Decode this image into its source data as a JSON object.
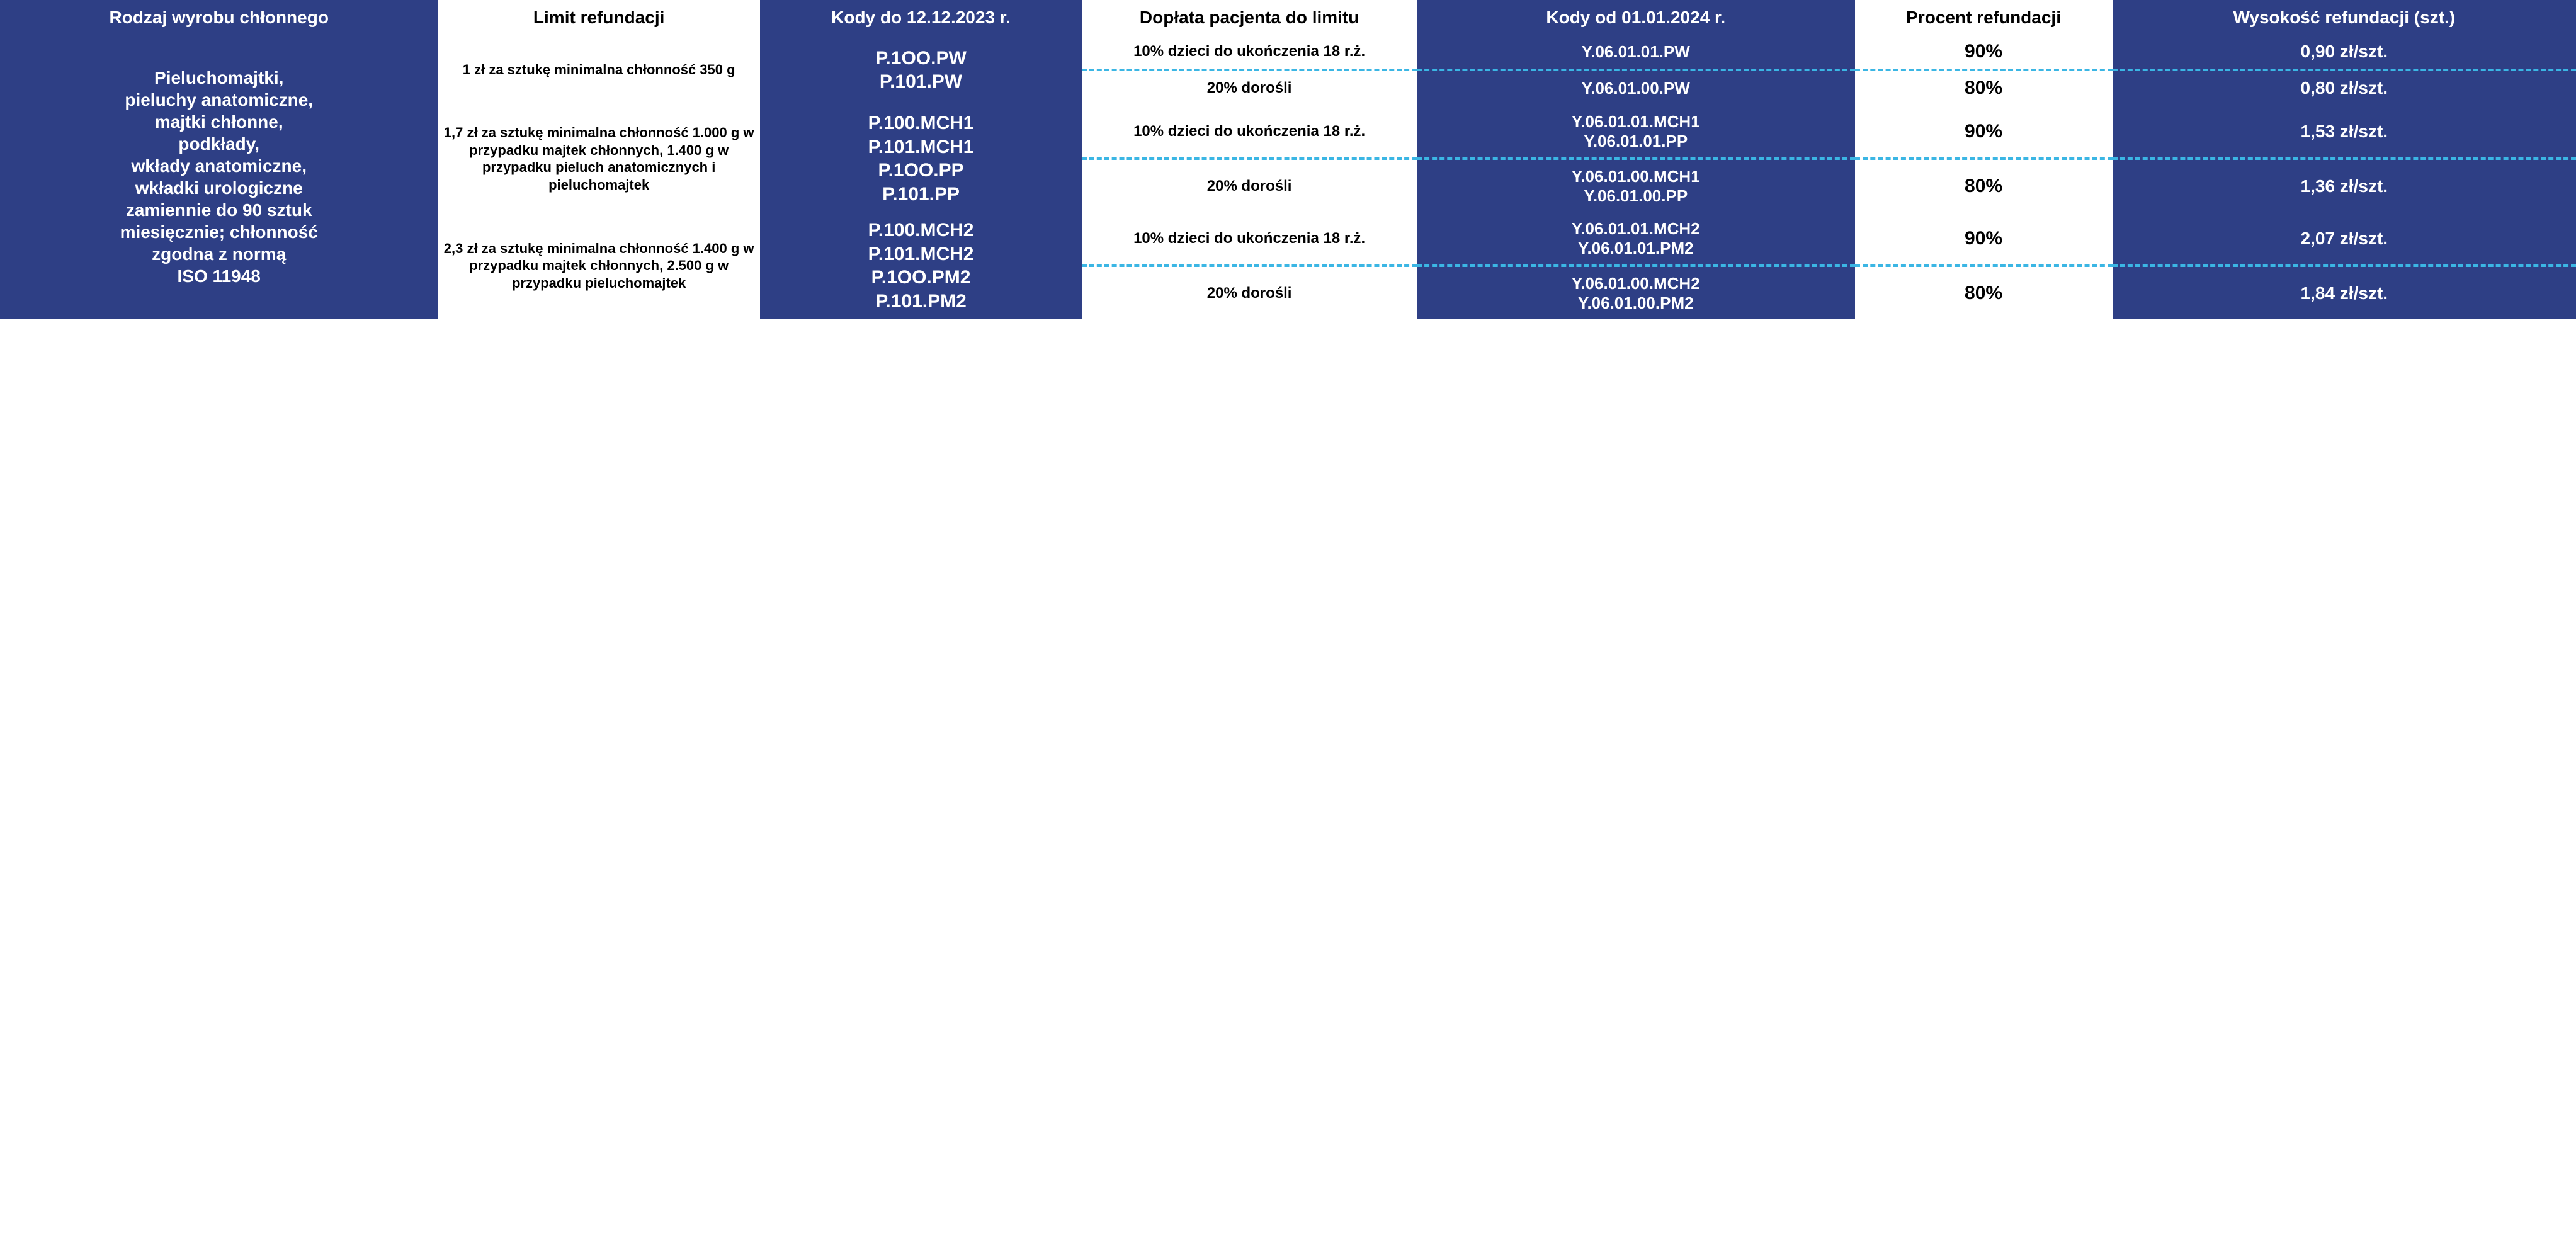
{
  "colors": {
    "blue": "#2e3f85",
    "white": "#ffffff",
    "black": "#000000",
    "dash": "#3bb6e4"
  },
  "headers": {
    "rodzaj": "Rodzaj wyrobu chłonnego",
    "limit": "Limit refundacji",
    "kody_old": "Kody do 12.12.2023 r.",
    "doplata": "Dopłata pacjenta do limitu",
    "kody_new": "Kody od 01.01.2024 r.",
    "procent": "Procent refundacji",
    "wysokosc": "Wysokość refundacji (szt.)"
  },
  "rodzaj_text": "Pieluchomajtki,\npieluchy anatomiczne,\nmajtki chłonne,\npodkłady,\nwkłady anatomiczne,\nwkładki urologiczne\nzamiennie do 90 sztuk\nmiesięcznie; chłonność\nzgodna z normą\nISO 11948",
  "groups": [
    {
      "limit": "1 zł za sztukę minimalna chłonność 350 g",
      "kody_old": "P.1OO.PW\nP.101.PW",
      "rows": [
        {
          "doplata": "10% dzieci do ukończenia 18 r.ż.",
          "kody_new": "Y.06.01.01.PW",
          "procent": "90%",
          "wysokosc": "0,90 zł/szt."
        },
        {
          "doplata": "20% dorośli",
          "kody_new": "Y.06.01.00.PW",
          "procent": "80%",
          "wysokosc": "0,80 zł/szt."
        }
      ]
    },
    {
      "limit": "1,7 zł za sztukę minimalna chłonność 1.000 g w przypadku majtek chłonnych, 1.400 g w przypadku pieluch anatomicznych i pieluchomajtek",
      "kody_old": "P.100.MCH1\nP.101.MCH1\nP.1OO.PP\nP.101.PP",
      "rows": [
        {
          "doplata": "10% dzieci do ukończenia 18 r.ż.",
          "kody_new": "Y.06.01.01.MCH1\nY.06.01.01.PP",
          "procent": "90%",
          "wysokosc": "1,53 zł/szt."
        },
        {
          "doplata": "20% dorośli",
          "kody_new": "Y.06.01.00.MCH1\nY.06.01.00.PP",
          "procent": "80%",
          "wysokosc": "1,36 zł/szt."
        }
      ]
    },
    {
      "limit": "2,3 zł za sztukę minimalna chłonność 1.400 g w przypadku majtek chłonnych, 2.500 g w przypadku pieluchomajtek",
      "kody_old": "P.100.MCH2\nP.101.MCH2\nP.1OO.PM2\nP.101.PM2",
      "rows": [
        {
          "doplata": "10% dzieci do ukończenia 18 r.ż.",
          "kody_new": "Y.06.01.01.MCH2\nY.06.01.01.PM2",
          "procent": "90%",
          "wysokosc": "2,07 zł/szt."
        },
        {
          "doplata": "20% dorośli",
          "kody_new": "Y.06.01.00.MCH2\nY.06.01.00.PM2",
          "procent": "80%",
          "wysokosc": "1,84 zł/szt."
        }
      ]
    }
  ]
}
